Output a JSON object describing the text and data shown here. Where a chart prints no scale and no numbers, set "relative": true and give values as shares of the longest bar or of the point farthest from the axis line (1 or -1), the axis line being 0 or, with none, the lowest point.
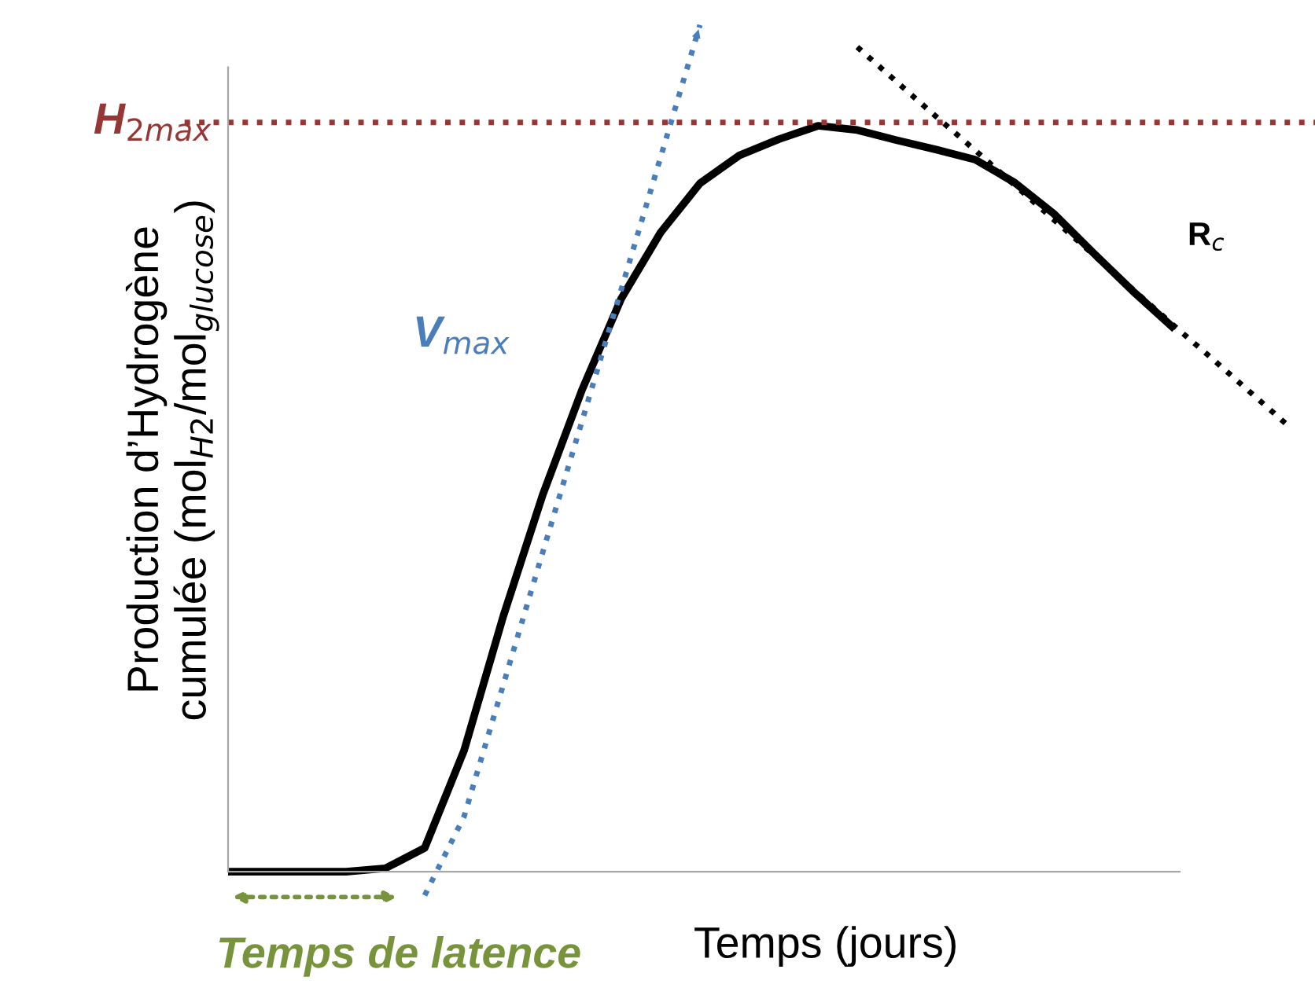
{
  "chart_data": {
    "type": "line",
    "relative": true,
    "xlabel": "Temps (jours)",
    "ylabel": "Production d’Hydrogène\ncumulée (mol$_{H2}$/mol$_{glucose}$)",
    "categories": [
      null,
      null,
      null,
      null,
      null,
      null,
      null,
      null,
      null,
      null,
      null,
      null,
      null,
      null,
      null,
      null,
      null,
      null,
      null,
      null,
      null,
      null,
      null,
      null,
      null,
      null,
      null,
      null
    ],
    "series": [
      {
        "color": "#000000",
        "line_style": "solid",
        "values": [
          0,
          0,
          0,
          0,
          0.004,
          0.028,
          0.143,
          0.302,
          0.445,
          0.569,
          0.677,
          0.755,
          0.813,
          0.846,
          0.865,
          0.881,
          0.876,
          0.864,
          0.853,
          0.841,
          0.814,
          0.777,
          0.731,
          0.686,
          0.644,
          null,
          null,
          null
        ]
      },
      {
        "name": "V$_{max}$",
        "color": "#4a7ebb",
        "line_style": "dotted",
        "values": [
          null,
          null,
          null,
          null,
          null,
          -0.028,
          0.065,
          0.221,
          0.377,
          0.532,
          0.688,
          0.844,
          1.0,
          null,
          null,
          null,
          null,
          null,
          null,
          null,
          null,
          null,
          null,
          null,
          null,
          null,
          null,
          null
        ]
      },
      {
        "name": "R$_{c}$",
        "color": "#000000",
        "line_style": "dotted",
        "values": [
          null,
          null,
          null,
          null,
          null,
          null,
          null,
          null,
          null,
          null,
          null,
          null,
          null,
          null,
          null,
          null,
          0.974,
          0.933,
          0.892,
          0.852,
          0.811,
          0.77,
          0.729,
          0.688,
          0.647,
          0.607,
          0.566,
          0.525
        ]
      }
    ],
    "ref_lines": [
      {
        "axis": "y",
        "value": 0.885,
        "label": "H$_{2max}$",
        "color": "#953735",
        "line_style": "dotted"
      }
    ],
    "annotations": [
      "Temps de latence"
    ],
    "grid": false,
    "legend": false,
    "marker": "none"
  }
}
